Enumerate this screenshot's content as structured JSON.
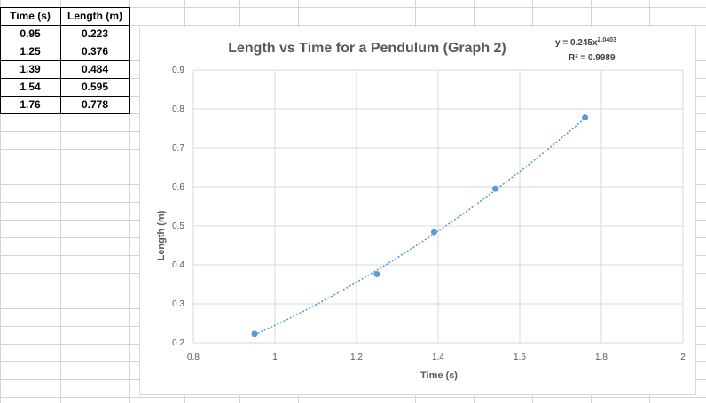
{
  "sheet": {
    "headers": [
      "Time (s)",
      "Length (m)"
    ],
    "rows": [
      [
        "0.95",
        "0.223"
      ],
      [
        "1.25",
        "0.376"
      ],
      [
        "1.39",
        "0.484"
      ],
      [
        "1.54",
        "0.595"
      ],
      [
        "1.76",
        "0.778"
      ]
    ]
  },
  "chart_data": {
    "type": "scatter",
    "title": "Length vs Time for a Pendulum (Graph 2)",
    "xlabel": "Time (s)",
    "ylabel": "Length (m)",
    "xlim": [
      0.8,
      2
    ],
    "ylim": [
      0.2,
      0.9
    ],
    "xticks": [
      "0.8",
      "1",
      "1.2",
      "1.4",
      "1.6",
      "1.8",
      "2"
    ],
    "yticks": [
      "0.2",
      "0.3",
      "0.4",
      "0.5",
      "0.6",
      "0.7",
      "0.8",
      "0.9"
    ],
    "grid": true,
    "series": [
      {
        "x": [
          0.95,
          1.25,
          1.39,
          1.54,
          1.76
        ],
        "y": [
          0.223,
          0.376,
          0.484,
          0.595,
          0.778
        ],
        "color": "#5b9bd5"
      }
    ],
    "trendline": {
      "type": "power",
      "coefficient": 0.245,
      "exponent": 2.0403,
      "color": "#5b9bd5"
    },
    "equation": "y = 0.245x",
    "equation_exponent": "2.0403",
    "r2_label": "R² = 0.9989"
  }
}
